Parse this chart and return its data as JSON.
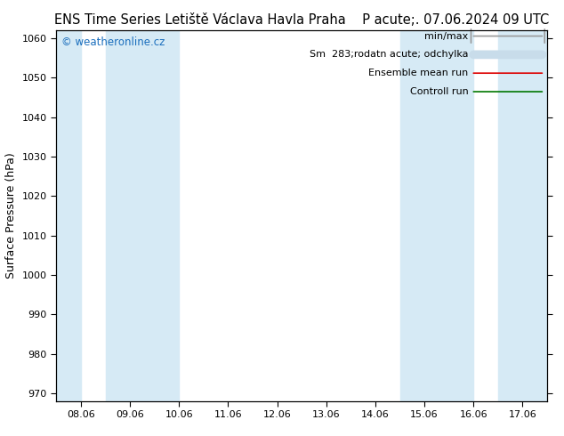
{
  "title": "ENS Time Series Letiště Václava Havla Praha",
  "title_right": "P acute;. 07.06.2024 09 UTC",
  "ylabel": "Surface Pressure (hPa)",
  "ylim": [
    968,
    1062
  ],
  "yticks": [
    970,
    980,
    990,
    1000,
    1010,
    1020,
    1030,
    1040,
    1050,
    1060
  ],
  "x_labels": [
    "08.06",
    "09.06",
    "10.06",
    "11.06",
    "12.06",
    "13.06",
    "14.06",
    "15.06",
    "16.06",
    "17.06"
  ],
  "x_positions": [
    0,
    1,
    2,
    3,
    4,
    5,
    6,
    7,
    8,
    9
  ],
  "shaded_bands": [
    {
      "x_start": -0.5,
      "x_end": 0.0
    },
    {
      "x_start": 0.5,
      "x_end": 2.0
    },
    {
      "x_start": 6.5,
      "x_end": 8.0
    },
    {
      "x_start": 8.5,
      "x_end": 9.5
    }
  ],
  "shade_color": "#d6eaf5",
  "background_color": "#ffffff",
  "watermark": "© weatheronline.cz",
  "watermark_color": "#1a6ebd",
  "legend_entries": [
    {
      "label": "min/max",
      "color": "#999999",
      "lw": 1.2,
      "style": "minmax"
    },
    {
      "label": "Sm  283;rodatn acute; odchylka",
      "color": "#c8dcea",
      "lw": 5,
      "style": "thick"
    },
    {
      "label": "Ensemble mean run",
      "color": "#dd0000",
      "lw": 1.2,
      "style": "line"
    },
    {
      "label": "Controll run",
      "color": "#007700",
      "lw": 1.2,
      "style": "line"
    }
  ],
  "title_fontsize": 10.5,
  "axis_fontsize": 9,
  "tick_fontsize": 8,
  "legend_fontsize": 8,
  "xlim": [
    -0.5,
    9.5
  ]
}
